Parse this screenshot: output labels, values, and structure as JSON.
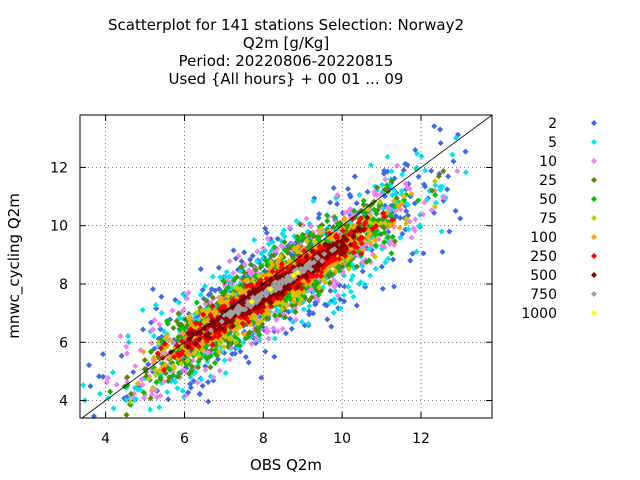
{
  "chart_data": {
    "type": "scatter",
    "title_lines": [
      "Scatterplot for  141 stations Selection: Norway2",
      "Q2m [g/Kg]",
      "Period: 20220806-20220815",
      "Used {All hours} + 00 01 ... 09"
    ],
    "xlabel": "OBS Q2m",
    "ylabel": "mnwc_cycling Q2m",
    "xlim": [
      3.35,
      13.8
    ],
    "ylim": [
      3.4,
      13.8
    ],
    "xticks": [
      4,
      6,
      8,
      10,
      12
    ],
    "yticks": [
      4,
      6,
      8,
      10,
      12
    ],
    "grid": true,
    "legend_position": "right",
    "diagonal_reference_line": true,
    "density_bands": [
      {
        "name": "2",
        "color": "#4169e1",
        "center_spread": 1.0
      },
      {
        "name": "5",
        "color": "#00e5ee",
        "center_spread": 0.86
      },
      {
        "name": "10",
        "color": "#ee82ee",
        "center_spread": 0.74
      },
      {
        "name": "25",
        "color": "#548b00",
        "center_spread": 0.62
      },
      {
        "name": "50",
        "color": "#00c000",
        "center_spread": 0.52
      },
      {
        "name": "75",
        "color": "#c8c800",
        "center_spread": 0.44
      },
      {
        "name": "100",
        "color": "#ffa500",
        "center_spread": 0.37
      },
      {
        "name": "250",
        "color": "#ff0000",
        "center_spread": 0.28
      },
      {
        "name": "500",
        "color": "#8b0000",
        "center_spread": 0.17
      },
      {
        "name": "750",
        "color": "#a0a0a0",
        "center_spread": 0.07
      },
      {
        "name": "1000",
        "color": "#ffff00",
        "center_spread": 0.015
      }
    ],
    "cloud": {
      "x_range": [
        3.4,
        13.2
      ],
      "major_axis_center": [
        8.3,
        7.9
      ],
      "slope": 0.85,
      "offset_sigma": 1.1
    }
  }
}
